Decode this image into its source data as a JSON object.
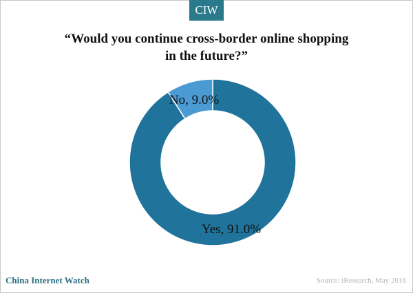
{
  "header": {
    "brand_tab": "CIW"
  },
  "chart_data": {
    "type": "pie",
    "title": "“Would you continue cross-border online shopping in the future?”",
    "slices": [
      {
        "label": "Yes, 91.0%",
        "category": "Yes",
        "value": 91.0,
        "color": "#20739a"
      },
      {
        "label": "No, 9.0%",
        "category": "No",
        "value": 9.0,
        "color": "#4a9bd4"
      }
    ],
    "donut": true
  },
  "footer": {
    "brand": "China Internet Watch",
    "source": "Source: iResearch, May 2016"
  },
  "colors": {
    "brand_tab_bg": "#2a7a8c",
    "footer_brand": "#2a6f82",
    "slice_stroke": "#ffffff"
  }
}
